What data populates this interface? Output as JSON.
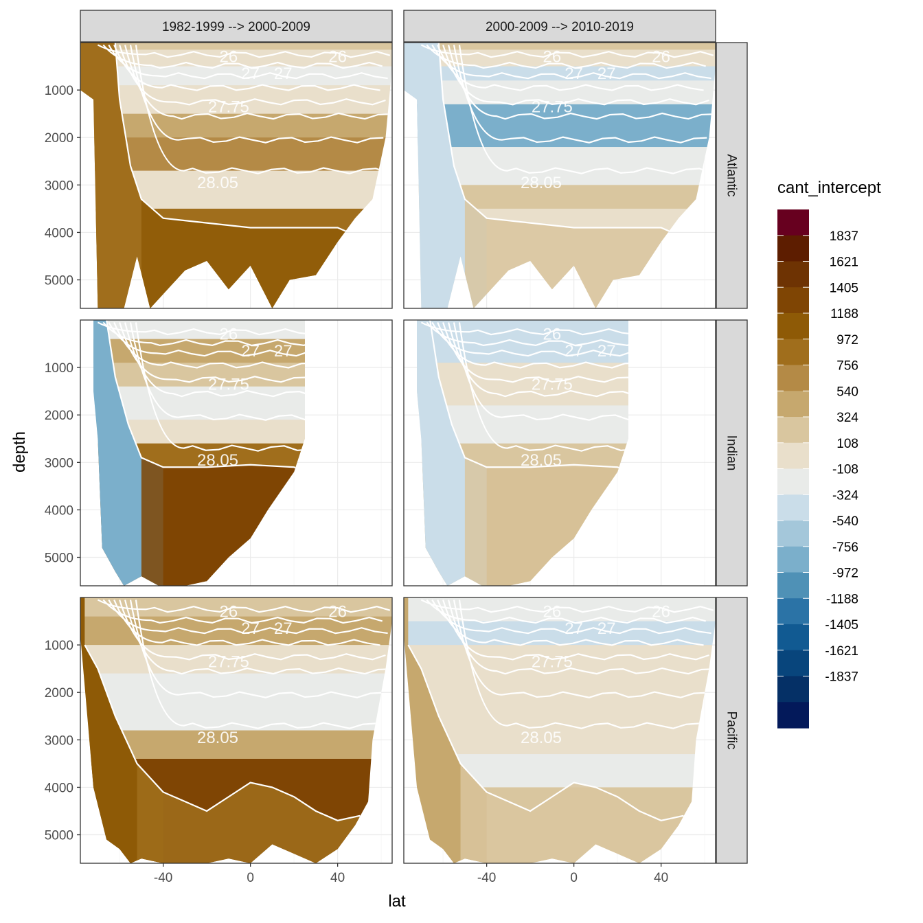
{
  "chart_data": {
    "type": "heatmap",
    "x_label": "lat",
    "y_label": "depth",
    "x_ticks": [
      -40,
      0,
      40
    ],
    "y_ticks": [
      1000,
      2000,
      3000,
      4000,
      5000
    ],
    "xlim": [
      -78,
      65
    ],
    "ylim": [
      0,
      5600
    ],
    "columns": [
      "1982-1999 --> 2000-2009",
      "2000-2009 --> 2010-2019"
    ],
    "rows": [
      "Atlantic",
      "Indian",
      "Pacific"
    ],
    "legend": {
      "title": "cant_intercept",
      "labels": [
        "1837",
        "1621",
        "1405",
        "1188",
        "972",
        "756",
        "540",
        "324",
        "108",
        "-108",
        "-324",
        "-540",
        "-756",
        "-972",
        "-1188",
        "-1405",
        "-1621",
        "-1837"
      ],
      "colors": [
        "#67001f",
        "#5d1d00",
        "#6e3303",
        "#7f4504",
        "#8e5a06",
        "#a06e1c",
        "#b48a46",
        "#c6a86e",
        "#d9c69f",
        "#e9dfcb",
        "#e9ebe9",
        "#cadde9",
        "#a4c7da",
        "#7bafcb",
        "#4f91b6",
        "#2b73a6",
        "#115a92",
        "#08457c",
        "#053066",
        "#03195a"
      ]
    },
    "density_contours": [
      "26",
      "27",
      "27.75",
      "28.05"
    ],
    "panels": [
      {
        "row": "Atlantic",
        "col": "1982-1999 --> 2000-2009",
        "bands": [
          {
            "depth_top": 0,
            "depth_bottom": 150,
            "value": 300
          },
          {
            "depth_top": 150,
            "depth_bottom": 500,
            "value": 100
          },
          {
            "depth_top": 500,
            "depth_bottom": 900,
            "value": -300
          },
          {
            "depth_top": 900,
            "depth_bottom": 1500,
            "value": 0
          },
          {
            "depth_top": 1500,
            "depth_bottom": 2000,
            "value": 400
          },
          {
            "depth_top": 2000,
            "depth_bottom": 2700,
            "value": 650
          },
          {
            "depth_top": 2700,
            "depth_bottom": 3500,
            "value": 0
          },
          {
            "depth_top": 3500,
            "depth_bottom": 5600,
            "value": 850
          }
        ],
        "southern_value": 850,
        "ridge_value": 1100
      },
      {
        "row": "Atlantic",
        "col": "2000-2009 --> 2010-2019",
        "bands": [
          {
            "depth_top": 0,
            "depth_bottom": 150,
            "value": 250
          },
          {
            "depth_top": 150,
            "depth_bottom": 500,
            "value": 0
          },
          {
            "depth_top": 500,
            "depth_bottom": 800,
            "value": -350
          },
          {
            "depth_top": 800,
            "depth_bottom": 1300,
            "value": -200
          },
          {
            "depth_top": 1300,
            "depth_bottom": 2200,
            "value": -950
          },
          {
            "depth_top": 2200,
            "depth_bottom": 3000,
            "value": -200
          },
          {
            "depth_top": 3000,
            "depth_bottom": 3500,
            "value": 250
          },
          {
            "depth_top": 3500,
            "depth_bottom": 5600,
            "value": 50
          }
        ],
        "southern_value": -400,
        "ridge_value": 200
      },
      {
        "row": "Indian",
        "col": "1982-1999 --> 2000-2009",
        "bands": [
          {
            "depth_top": 0,
            "depth_bottom": 400,
            "value": -300
          },
          {
            "depth_top": 400,
            "depth_bottom": 900,
            "value": 400
          },
          {
            "depth_top": 900,
            "depth_bottom": 1400,
            "value": 200
          },
          {
            "depth_top": 1400,
            "depth_bottom": 2100,
            "value": -250
          },
          {
            "depth_top": 2100,
            "depth_bottom": 2600,
            "value": 0
          },
          {
            "depth_top": 2600,
            "depth_bottom": 3100,
            "value": 800
          },
          {
            "depth_top": 3100,
            "depth_bottom": 5600,
            "value": 1300
          }
        ],
        "southern_value": -800,
        "ridge_value": 1300
      },
      {
        "row": "Indian",
        "col": "2000-2009 --> 2010-2019",
        "bands": [
          {
            "depth_top": 0,
            "depth_bottom": 400,
            "value": -400
          },
          {
            "depth_top": 400,
            "depth_bottom": 900,
            "value": -500
          },
          {
            "depth_top": 900,
            "depth_bottom": 1800,
            "value": 0
          },
          {
            "depth_top": 1800,
            "depth_bottom": 2600,
            "value": -200
          },
          {
            "depth_top": 2600,
            "depth_bottom": 3100,
            "value": 200
          },
          {
            "depth_top": 3100,
            "depth_bottom": 5600,
            "value": 350
          }
        ],
        "southern_value": -350,
        "ridge_value": 300
      },
      {
        "row": "Pacific",
        "col": "1982-1999 --> 2000-2009",
        "bands": [
          {
            "depth_top": 0,
            "depth_bottom": 400,
            "value": 200
          },
          {
            "depth_top": 400,
            "depth_bottom": 1000,
            "value": 400
          },
          {
            "depth_top": 1000,
            "depth_bottom": 1600,
            "value": 100
          },
          {
            "depth_top": 1600,
            "depth_bottom": 2800,
            "value": -200
          },
          {
            "depth_top": 2800,
            "depth_bottom": 3400,
            "value": 350
          },
          {
            "depth_top": 3400,
            "depth_bottom": 5600,
            "value": 1200
          }
        ],
        "southern_value": 1100,
        "ridge_value": 800
      },
      {
        "row": "Pacific",
        "col": "2000-2009 --> 2010-2019",
        "bands": [
          {
            "depth_top": 0,
            "depth_bottom": 500,
            "value": -200
          },
          {
            "depth_top": 500,
            "depth_bottom": 1000,
            "value": -500
          },
          {
            "depth_top": 1000,
            "depth_bottom": 1800,
            "value": 0
          },
          {
            "depth_top": 1800,
            "depth_bottom": 3300,
            "value": -50
          },
          {
            "depth_top": 3300,
            "depth_bottom": 4000,
            "value": -250
          },
          {
            "depth_top": 4000,
            "depth_bottom": 5600,
            "value": 300
          }
        ],
        "southern_value": 350,
        "ridge_value": 250
      }
    ]
  }
}
